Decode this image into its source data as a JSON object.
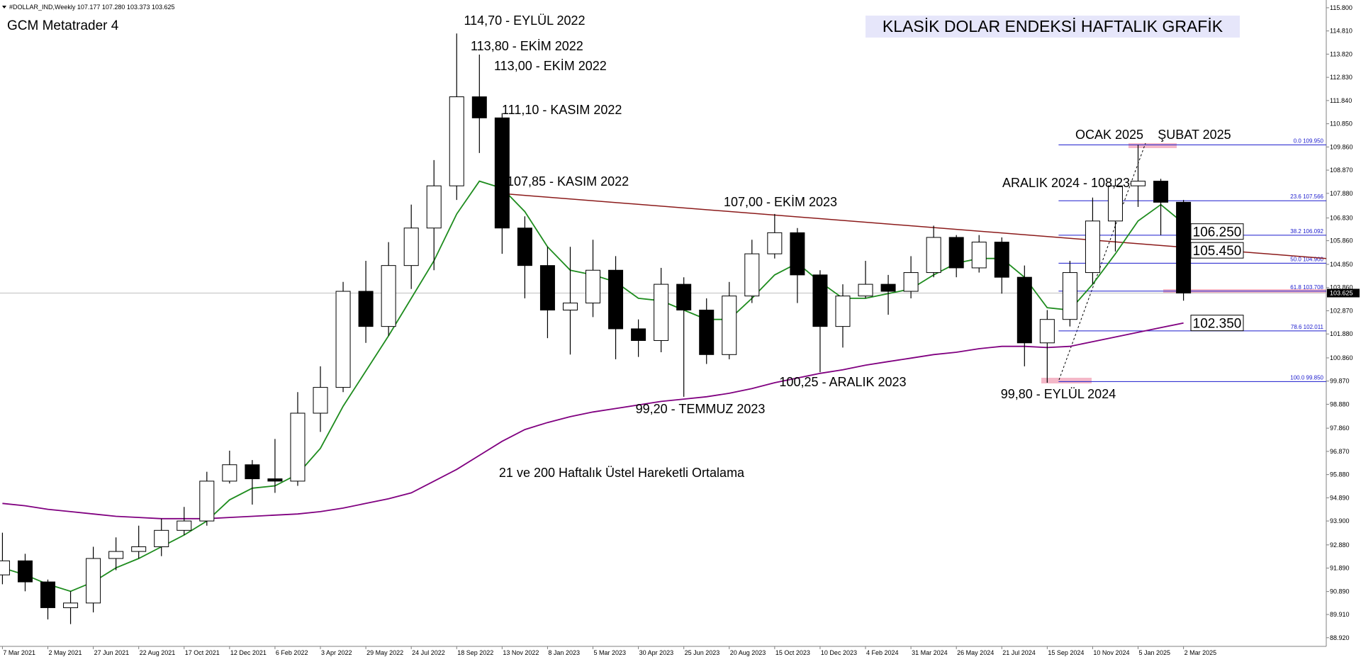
{
  "chart_data": {
    "type": "candlestick",
    "header": "#DOLLAR_IND,Weekly  107.177 107.280 103.373 103.625",
    "platform": "GCM Metatrader 4",
    "title": "KLASİK DOLAR ENDEKSİ HAFTALIK GRAFİK",
    "subtitle": "21 ve 200 Haftalık Üstel Hareketli Ortalama",
    "annotations": [
      "114,70 - EYLÜL 2022",
      "113,80 - EKİM 2022",
      "113,00 - EKİM 2022",
      "111,10 - KASIM 2022",
      "107,85 - KASIM 2022",
      "107,00 - EKİM 2023",
      "100,25 - ARALIK 2023",
      "99,20 - TEMMUZ 2023",
      "99,80 - EYLÜL 2024",
      "ARALIK 2024 - 108,23",
      "OCAK 2025",
      "ŞUBAT 2025"
    ],
    "x": [
      "2021-03-07",
      "2021-04-04",
      "2021-05-02",
      "2021-05-30",
      "2021-06-27",
      "2021-07-25",
      "2021-08-22",
      "2021-09-19",
      "2021-10-17",
      "2021-11-14",
      "2021-12-12",
      "2022-01-09",
      "2022-02-06",
      "2022-03-06",
      "2022-04-03",
      "2022-05-01",
      "2022-05-29",
      "2022-06-26",
      "2022-07-24",
      "2022-08-21",
      "2022-09-18",
      "2022-10-16",
      "2022-11-13",
      "2022-12-11",
      "2023-01-08",
      "2023-02-05",
      "2023-03-05",
      "2023-04-02",
      "2023-04-30",
      "2023-05-28",
      "2023-06-25",
      "2023-07-23",
      "2023-08-20",
      "2023-09-17",
      "2023-10-15",
      "2023-11-12",
      "2023-12-10",
      "2024-01-07",
      "2024-02-04",
      "2024-03-03",
      "2024-03-31",
      "2024-04-28",
      "2024-05-26",
      "2024-06-23",
      "2024-07-21",
      "2024-08-18",
      "2024-09-15",
      "2024-10-13",
      "2024-11-10",
      "2024-12-08",
      "2025-01-05",
      "2025-02-02",
      "2025-03-02"
    ],
    "open": [
      91.6,
      92.2,
      91.3,
      90.2,
      90.4,
      92.3,
      92.6,
      92.8,
      93.5,
      93.9,
      95.6,
      96.3,
      95.7,
      95.6,
      98.5,
      99.6,
      103.7,
      102.2,
      104.8,
      106.4,
      108.2,
      112.0,
      111.1,
      106.4,
      104.8,
      102.9,
      103.2,
      104.6,
      102.1,
      101.6,
      104.0,
      102.9,
      101.0,
      103.5,
      105.3,
      106.2,
      104.4,
      102.2,
      103.5,
      104.0,
      103.7,
      104.5,
      106.0,
      104.7,
      105.8,
      104.3,
      101.5,
      102.5,
      104.5,
      106.7,
      108.2,
      108.4,
      107.5
    ],
    "high": [
      93.4,
      92.5,
      91.4,
      90.9,
      92.8,
      93.2,
      93.7,
      94.0,
      94.5,
      96.0,
      96.9,
      96.5,
      97.4,
      99.4,
      100.5,
      104.1,
      105.0,
      105.8,
      107.4,
      109.3,
      114.7,
      113.8,
      111.3,
      106.9,
      105.6,
      105.6,
      105.9,
      105.2,
      102.5,
      104.7,
      104.3,
      103.4,
      104.1,
      105.9,
      107.0,
      106.4,
      104.6,
      104.0,
      105.0,
      104.4,
      105.2,
      106.5,
      106.1,
      106.1,
      106.0,
      104.8,
      102.9,
      105.0,
      107.7,
      108.5,
      109.95,
      108.5,
      107.6
    ],
    "low": [
      91.2,
      90.9,
      89.7,
      89.5,
      90.0,
      91.8,
      92.3,
      92.4,
      93.3,
      93.7,
      95.5,
      94.6,
      95.1,
      95.4,
      97.7,
      99.4,
      101.5,
      101.8,
      103.8,
      104.6,
      107.6,
      109.6,
      105.3,
      103.4,
      101.7,
      101.0,
      102.6,
      100.8,
      100.9,
      101.1,
      99.2,
      100.6,
      100.8,
      103.2,
      105.1,
      103.2,
      100.25,
      101.3,
      103.4,
      102.7,
      103.4,
      104.3,
      104.3,
      104.5,
      103.6,
      100.5,
      99.8,
      102.2,
      104.0,
      105.4,
      107.3,
      106.1,
      103.3
    ],
    "close": [
      92.2,
      91.3,
      90.2,
      90.4,
      92.3,
      92.6,
      92.8,
      93.5,
      93.9,
      95.6,
      96.3,
      95.7,
      95.6,
      98.5,
      99.6,
      103.7,
      102.2,
      104.8,
      106.4,
      108.2,
      112.0,
      111.1,
      106.4,
      104.8,
      102.9,
      103.2,
      104.6,
      102.1,
      101.6,
      104.0,
      102.9,
      101.0,
      103.5,
      105.3,
      106.2,
      104.4,
      102.2,
      103.5,
      104.0,
      103.7,
      104.5,
      106.0,
      104.7,
      105.8,
      104.3,
      101.5,
      102.5,
      104.5,
      106.7,
      108.2,
      108.4,
      107.5,
      103.625
    ],
    "up_color": "#ffffff",
    "down_color": "#000000",
    "outline_color": "#000000",
    "lines": [
      {
        "color": "#1e8c1e",
        "values": [
          91.9,
          91.6,
          91.2,
          90.9,
          91.3,
          91.9,
          92.3,
          92.8,
          93.3,
          93.9,
          94.8,
          95.3,
          95.4,
          95.9,
          97.0,
          98.8,
          100.3,
          101.8,
          103.4,
          105.0,
          107.0,
          108.4,
          108.1,
          107.1,
          105.6,
          104.6,
          104.4,
          104.1,
          103.4,
          103.3,
          102.9,
          102.5,
          102.5,
          103.4,
          104.4,
          104.9,
          104.1,
          103.4,
          103.4,
          103.6,
          103.8,
          104.4,
          104.9,
          105.1,
          105.1,
          104.3,
          103.0,
          102.9,
          104.0,
          105.3,
          106.7,
          107.4,
          106.6
        ]
      },
      {
        "color": "#800080",
        "values": [
          94.65,
          94.55,
          94.4,
          94.3,
          94.2,
          94.1,
          94.05,
          94.0,
          94.0,
          94.0,
          94.05,
          94.1,
          94.15,
          94.2,
          94.3,
          94.45,
          94.65,
          94.85,
          95.1,
          95.6,
          96.1,
          96.7,
          97.3,
          97.8,
          98.1,
          98.35,
          98.55,
          98.7,
          98.85,
          99.0,
          99.1,
          99.2,
          99.35,
          99.55,
          99.8,
          100.0,
          100.2,
          100.35,
          100.55,
          100.7,
          100.85,
          101.0,
          101.1,
          101.25,
          101.35,
          101.35,
          101.3,
          101.35,
          101.55,
          101.75,
          101.95,
          102.15,
          102.35
        ]
      }
    ],
    "trend_line": {
      "color": "#8b1a1a",
      "x": [
        "2022-11-20",
        "2025-08-25"
      ],
      "values": [
        107.85,
        105.1
      ]
    },
    "fibonacci": {
      "color": "#1a1acd",
      "from": "2024-09-29",
      "levels": [
        {
          "value": 109.95,
          "label": "0.0 109.950"
        },
        {
          "value": 107.566,
          "label": "23.6 107.566"
        },
        {
          "value": 106.092,
          "label": "38.2 106.092"
        },
        {
          "value": 104.9,
          "label": "50.0 104.900"
        },
        {
          "value": 103.708,
          "label": "61.8 103.708"
        },
        {
          "value": 102.011,
          "label": "78.6 102.011"
        },
        {
          "value": 99.85,
          "label": "100.0 99.850"
        }
      ]
    },
    "price_labels": [
      {
        "value": 106.25,
        "label": "106.250"
      },
      {
        "value": 105.45,
        "label": "105.450"
      },
      {
        "value": 102.35,
        "label": "102.350"
      }
    ],
    "current_price": {
      "value": 103.625,
      "label": "103.625"
    },
    "xlim": [
      "2021-03-04",
      "2025-08-25"
    ],
    "ylim": [
      88.55,
      116.13
    ],
    "yticks": [
      {
        "value": 115.8,
        "label": "115.800"
      },
      {
        "value": 114.81,
        "label": "114.810"
      },
      {
        "value": 113.82,
        "label": "113.820"
      },
      {
        "value": 112.83,
        "label": "112.830"
      },
      {
        "value": 111.84,
        "label": "111.840"
      },
      {
        "value": 110.85,
        "label": "110.850"
      },
      {
        "value": 109.86,
        "label": "109.860"
      },
      {
        "value": 108.87,
        "label": "108.870"
      },
      {
        "value": 107.88,
        "label": "107.880"
      },
      {
        "value": 106.83,
        "label": "106.830"
      },
      {
        "value": 105.86,
        "label": "105.860"
      },
      {
        "value": 104.85,
        "label": "104.850"
      },
      {
        "value": 103.86,
        "label": "103.860"
      },
      {
        "value": 102.87,
        "label": "102.870"
      },
      {
        "value": 101.88,
        "label": "101.880"
      },
      {
        "value": 100.86,
        "label": "100.860"
      },
      {
        "value": 99.87,
        "label": "99.870"
      },
      {
        "value": 98.88,
        "label": "98.880"
      },
      {
        "value": 97.86,
        "label": "97.860"
      },
      {
        "value": 96.87,
        "label": "96.870"
      },
      {
        "value": 95.88,
        "label": "95.880"
      },
      {
        "value": 94.89,
        "label": "94.890"
      },
      {
        "value": 93.9,
        "label": "93.900"
      },
      {
        "value": 92.88,
        "label": "92.880"
      },
      {
        "value": 91.89,
        "label": "91.890"
      },
      {
        "value": 90.89,
        "label": "90.890"
      },
      {
        "value": 89.91,
        "label": "89.910"
      },
      {
        "value": 88.92,
        "label": "88.920"
      }
    ],
    "xticks": [
      {
        "value": "2021-03-07",
        "label": "7 Mar 2021"
      },
      {
        "value": "2021-05-02",
        "label": "2 May 2021"
      },
      {
        "value": "2021-06-27",
        "label": "27 Jun 2021"
      },
      {
        "value": "2021-08-22",
        "label": "22 Aug 2021"
      },
      {
        "value": "2021-10-17",
        "label": "17 Oct 2021"
      },
      {
        "value": "2021-12-12",
        "label": "12 Dec 2021"
      },
      {
        "value": "2022-02-06",
        "label": "6 Feb 2022"
      },
      {
        "value": "2022-04-03",
        "label": "3 Apr 2022"
      },
      {
        "value": "2022-05-29",
        "label": "29 May 2022"
      },
      {
        "value": "2022-07-24",
        "label": "24 Jul 2022"
      },
      {
        "value": "2022-09-18",
        "label": "18 Sep 2022"
      },
      {
        "value": "2022-11-13",
        "label": "13 Nov 2022"
      },
      {
        "value": "2023-01-08",
        "label": "8 Jan 2023"
      },
      {
        "value": "2023-03-05",
        "label": "5 Mar 2023"
      },
      {
        "value": "2023-04-30",
        "label": "30 Apr 2023"
      },
      {
        "value": "2023-06-25",
        "label": "25 Jun 2023"
      },
      {
        "value": "2023-08-20",
        "label": "20 Aug 2023"
      },
      {
        "value": "2023-10-15",
        "label": "15 Oct 2023"
      },
      {
        "value": "2023-12-10",
        "label": "10 Dec 2023"
      },
      {
        "value": "2024-02-04",
        "label": "4 Feb 2024"
      },
      {
        "value": "2024-03-31",
        "label": "31 Mar 2024"
      },
      {
        "value": "2024-05-26",
        "label": "26 May 2024"
      },
      {
        "value": "2024-07-21",
        "label": "21 Jul 2024"
      },
      {
        "value": "2024-09-15",
        "label": "15 Sep 2024"
      },
      {
        "value": "2024-11-10",
        "label": "10 Nov 2024"
      },
      {
        "value": "2025-01-05",
        "label": "5 Jan 2025"
      },
      {
        "value": "2025-03-02",
        "label": "2 Mar 2025"
      }
    ],
    "grid": false
  }
}
